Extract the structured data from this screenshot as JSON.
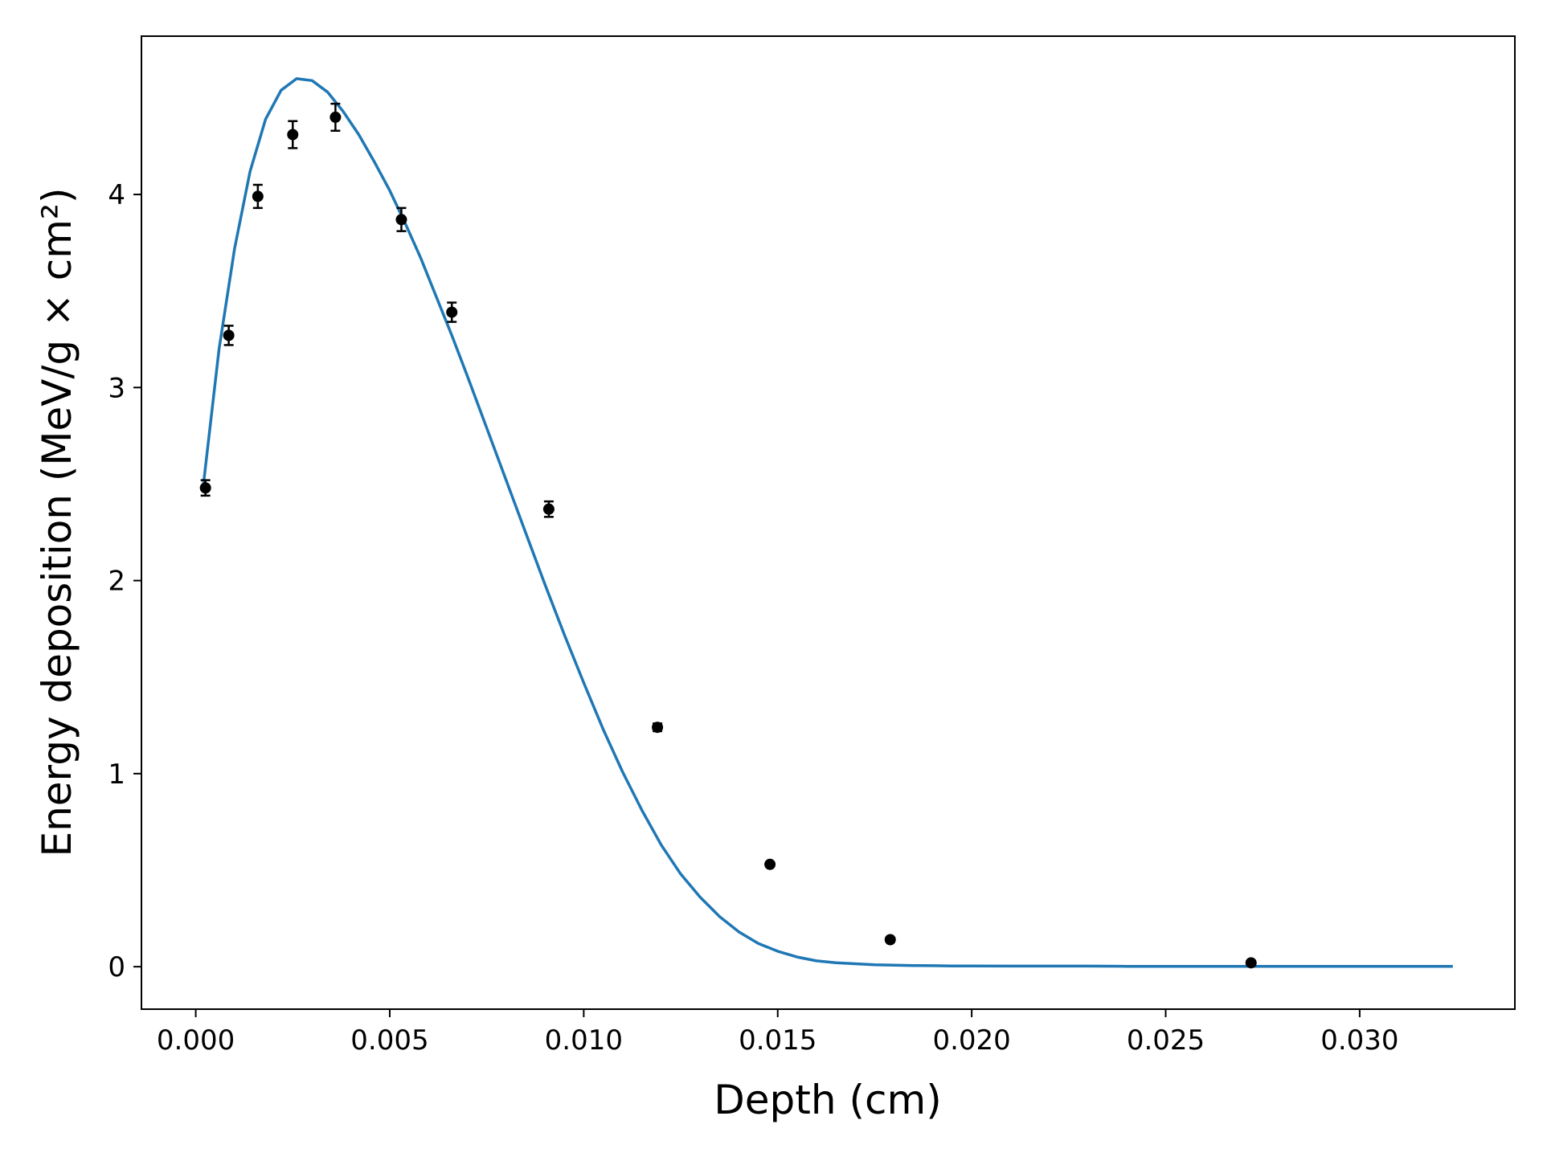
{
  "chart_data": {
    "type": "line",
    "title": "",
    "xlabel": "Depth (cm)",
    "ylabel": "Energy deposition (MeV/g × cm²)",
    "xlim": [
      -0.0014,
      0.034
    ],
    "ylim": [
      -0.22,
      4.82
    ],
    "xticks": [
      0.0,
      0.005,
      0.01,
      0.015,
      0.02,
      0.025,
      0.03
    ],
    "xtick_labels": [
      "0.000",
      "0.005",
      "0.010",
      "0.015",
      "0.020",
      "0.025",
      "0.030"
    ],
    "yticks": [
      0,
      1,
      2,
      3,
      4
    ],
    "ytick_labels": [
      "0",
      "1",
      "2",
      "3",
      "4"
    ],
    "grid": false,
    "legend": "none",
    "series": [
      {
        "kind": "line",
        "color": "#1f77b4",
        "x": [
          0.0002,
          0.0006,
          0.001,
          0.0014,
          0.0018,
          0.0022,
          0.0026,
          0.003,
          0.0034,
          0.0038,
          0.0042,
          0.0046,
          0.005,
          0.0054,
          0.0058,
          0.0062,
          0.0066,
          0.007,
          0.0075,
          0.008,
          0.0085,
          0.009,
          0.0095,
          0.01,
          0.0105,
          0.011,
          0.0115,
          0.012,
          0.0125,
          0.013,
          0.0135,
          0.014,
          0.0145,
          0.015,
          0.0155,
          0.016,
          0.0165,
          0.017,
          0.0175,
          0.018,
          0.0185,
          0.019,
          0.0195,
          0.02,
          0.021,
          0.022,
          0.023,
          0.024,
          0.026,
          0.028,
          0.03,
          0.0324
        ],
        "y": [
          2.5,
          3.2,
          3.72,
          4.12,
          4.39,
          4.54,
          4.6,
          4.59,
          4.53,
          4.43,
          4.31,
          4.17,
          4.02,
          3.85,
          3.67,
          3.47,
          3.27,
          3.06,
          2.79,
          2.52,
          2.25,
          1.98,
          1.72,
          1.47,
          1.23,
          1.01,
          0.81,
          0.63,
          0.48,
          0.36,
          0.26,
          0.18,
          0.12,
          0.08,
          0.05,
          0.03,
          0.02,
          0.015,
          0.01,
          0.008,
          0.006,
          0.005,
          0.004,
          0.004,
          0.003,
          0.003,
          0.003,
          0.002,
          0.002,
          0.002,
          0.002,
          0.002
        ]
      },
      {
        "kind": "scatter",
        "color": "#000000",
        "x": [
          0.00025,
          0.00085,
          0.0016,
          0.0025,
          0.0036,
          0.0053,
          0.0066,
          0.0091,
          0.0119,
          0.0148,
          0.0179,
          0.0272
        ],
        "y": [
          2.48,
          3.27,
          3.99,
          4.31,
          4.4,
          3.87,
          3.39,
          2.37,
          1.24,
          0.53,
          0.14,
          0.02
        ],
        "yerr": [
          0.04,
          0.05,
          0.06,
          0.07,
          0.07,
          0.06,
          0.05,
          0.04,
          0.02,
          0.01,
          0.01,
          0.0
        ]
      }
    ]
  }
}
